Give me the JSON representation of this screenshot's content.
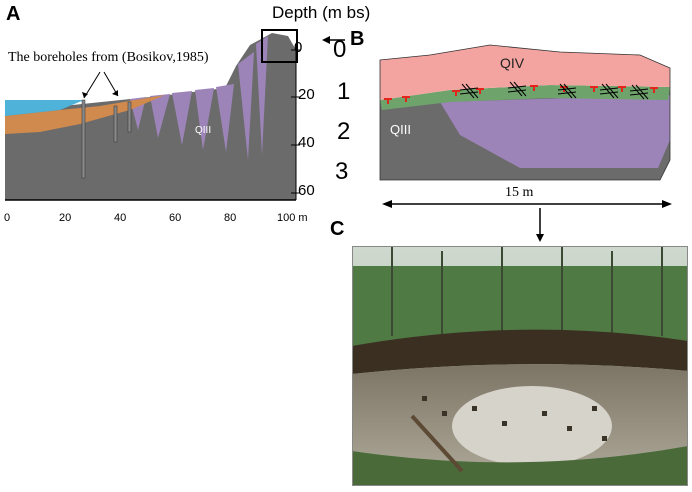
{
  "panels": {
    "a": {
      "letter": "A",
      "depth_title": "Depth (m bs)",
      "borehole_note": "The boreholes from (Bosikov,1985)",
      "unit_label": "QIII",
      "depth_ticks": [
        "0",
        "20",
        "40",
        "60"
      ],
      "x_ticks": [
        "0",
        "20",
        "40",
        "60",
        "80",
        "100 m"
      ]
    },
    "b": {
      "letter": "B",
      "depth_ticks": [
        "0",
        "1",
        "2",
        "3"
      ],
      "upper_unit": "QIV",
      "lower_unit": "QIII",
      "scale_label": "15  m"
    },
    "c": {
      "letter": "C"
    }
  },
  "colors": {
    "water": "#4fb3d9",
    "sediment_orange": "#d08a4e",
    "permafrost_gray": "#6b6b6b",
    "ice_wedge_purple": "#9c84b8",
    "qiv_pink": "#f4a4a0",
    "active_green": "#6fa36c",
    "marker_red": "#e3241b"
  }
}
